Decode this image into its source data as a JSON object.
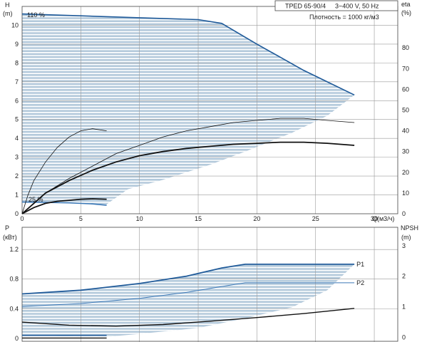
{
  "colors": {
    "envelope_fill": "#b3c9db",
    "max_curve": "#1f5a99",
    "min_curve": "#3d7ab8",
    "npsh": "#111111",
    "eta_max": "#111111",
    "eta_min": "#111111",
    "grid": "#9a9a9a"
  },
  "header": {
    "model": "TPED 65-90/4",
    "supply": "3~400 V, 50 Hz",
    "density": "Плотность = 1000 кг/м3"
  },
  "chart_data": [
    {
      "type": "line",
      "name": "top-panel",
      "xlabel": "Q(м3/ч)",
      "ylabel": "H",
      "ylabel_unit": "(m)",
      "y2label": "eta",
      "y2label_unit": "(%)",
      "xlim": [
        0,
        32
      ],
      "ylim": [
        0,
        11
      ],
      "y2lim": [
        0,
        100
      ],
      "x_ticks": [
        0,
        5,
        10,
        15,
        20,
        25,
        30
      ],
      "y_ticks": [
        0,
        1,
        2,
        3,
        4,
        5,
        6,
        7,
        8,
        9,
        10
      ],
      "y2_ticks": [
        0,
        10,
        20,
        30,
        40,
        50,
        60,
        70,
        80
      ],
      "grid": true,
      "annotations": {
        "max_speed": "110 %",
        "min_speed": "25 %"
      },
      "envelope": {
        "upper": [
          [
            0,
            10.6
          ],
          [
            5,
            10.5
          ],
          [
            10,
            10.4
          ],
          [
            15,
            10.3
          ],
          [
            17,
            10.1
          ],
          [
            20,
            9.0
          ],
          [
            24,
            7.6
          ],
          [
            28.3,
            6.3
          ]
        ],
        "lower": [
          [
            28.3,
            6.3
          ],
          [
            26,
            5.2
          ],
          [
            23,
            4.3
          ],
          [
            19,
            3.3
          ],
          [
            16,
            2.6
          ],
          [
            12,
            1.8
          ],
          [
            9,
            1.3
          ],
          [
            7.2,
            0.5
          ],
          [
            5,
            0.55
          ],
          [
            0,
            0.65
          ]
        ]
      },
      "head_min": [
        [
          0,
          0.62
        ],
        [
          2,
          0.6
        ],
        [
          4,
          0.58
        ],
        [
          6,
          0.52
        ],
        [
          7.2,
          0.45
        ]
      ],
      "eta_max_speed": [
        [
          0,
          0
        ],
        [
          1,
          5
        ],
        [
          2,
          10
        ],
        [
          4,
          17
        ],
        [
          6,
          23
        ],
        [
          8,
          29
        ],
        [
          10,
          33
        ],
        [
          12,
          37
        ],
        [
          14,
          40
        ],
        [
          16,
          42
        ],
        [
          18,
          44
        ],
        [
          20,
          45
        ],
        [
          22,
          46
        ],
        [
          24,
          46
        ],
        [
          26,
          45
        ],
        [
          28.3,
          44
        ]
      ],
      "eta_p2_max": [
        [
          0,
          0
        ],
        [
          1,
          5
        ],
        [
          2,
          10
        ],
        [
          4,
          16
        ],
        [
          6,
          21
        ],
        [
          8,
          25
        ],
        [
          10,
          28
        ],
        [
          12,
          30
        ],
        [
          14,
          31.5
        ],
        [
          16,
          32.5
        ],
        [
          18,
          33.5
        ],
        [
          20,
          34
        ],
        [
          22,
          34.5
        ],
        [
          24,
          34.5
        ],
        [
          26,
          34
        ],
        [
          28.3,
          33
        ]
      ],
      "eta_min_speed": [
        [
          0,
          0
        ],
        [
          0.5,
          9
        ],
        [
          1,
          16
        ],
        [
          2,
          25
        ],
        [
          3,
          32
        ],
        [
          4,
          37
        ],
        [
          5,
          40
        ],
        [
          6,
          41
        ],
        [
          7.2,
          40
        ]
      ],
      "eta_min_low": [
        [
          0,
          0
        ],
        [
          1,
          3
        ],
        [
          2,
          5
        ],
        [
          3,
          6
        ],
        [
          4,
          6.5
        ],
        [
          5,
          7
        ],
        [
          6,
          7.2
        ],
        [
          7.2,
          7
        ]
      ]
    },
    {
      "type": "line",
      "name": "bottom-panel",
      "ylabel": "P",
      "ylabel_unit": "(кВт)",
      "y2label": "NPSH",
      "y2label_unit": "(m)",
      "xlim": [
        0,
        32
      ],
      "ylim": [
        -0.05,
        1.5
      ],
      "y2lim": [
        -0.15,
        3.6
      ],
      "y_ticks": [
        0,
        0.4,
        0.8,
        1.2
      ],
      "y2_ticks": [
        0,
        1,
        2,
        3
      ],
      "grid": true,
      "envelope": {
        "upper": [
          [
            0,
            0.6
          ],
          [
            5,
            0.65
          ],
          [
            10,
            0.74
          ],
          [
            14,
            0.84
          ],
          [
            17,
            0.95
          ],
          [
            19,
            1.0
          ],
          [
            28.3,
            1.0
          ]
        ],
        "lower": [
          [
            28.3,
            1.0
          ],
          [
            26,
            0.65
          ],
          [
            23,
            0.42
          ],
          [
            19,
            0.27
          ],
          [
            15,
            0.14
          ],
          [
            10,
            0.06
          ],
          [
            7.2,
            0.02
          ],
          [
            0,
            0.04
          ]
        ]
      },
      "series": [
        {
          "name": "P1",
          "values": [
            [
              0,
              0.6
            ],
            [
              5,
              0.65
            ],
            [
              10,
              0.74
            ],
            [
              14,
              0.84
            ],
            [
              17,
              0.95
            ],
            [
              19,
              1.0
            ],
            [
              28.3,
              1.0
            ]
          ]
        },
        {
          "name": "P2",
          "values": [
            [
              0,
              0.43
            ],
            [
              5,
              0.47
            ],
            [
              10,
              0.54
            ],
            [
              14,
              0.62
            ],
            [
              17,
              0.7
            ],
            [
              19,
              0.75
            ],
            [
              28.3,
              0.75
            ]
          ]
        }
      ],
      "npsh": [
        [
          0,
          0.5
        ],
        [
          4,
          0.4
        ],
        [
          8,
          0.37
        ],
        [
          12,
          0.42
        ],
        [
          16,
          0.53
        ],
        [
          20,
          0.65
        ],
        [
          24,
          0.78
        ],
        [
          28.3,
          0.95
        ]
      ],
      "p_min_speed": [
        [
          0,
          0.04
        ],
        [
          7.2,
          0.04
        ]
      ],
      "p2_min_speed": [
        [
          0,
          0.03
        ],
        [
          7.2,
          0.03
        ]
      ],
      "npsh_min_speed": [
        [
          0,
          -0.02
        ],
        [
          3,
          -0.02
        ],
        [
          7.2,
          -0.02
        ]
      ]
    }
  ]
}
